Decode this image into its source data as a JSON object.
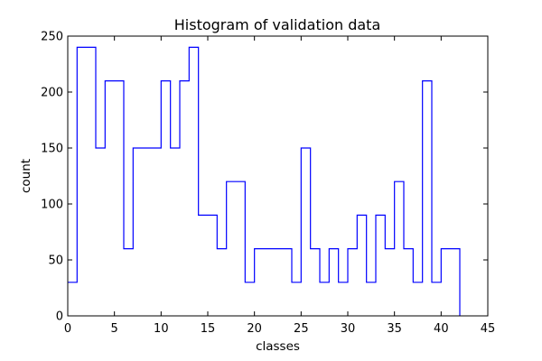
{
  "chart_data": {
    "type": "step",
    "title": "Histogram of validation data",
    "xlabel": "classes",
    "ylabel": "count",
    "xlim": [
      0,
      45
    ],
    "ylim": [
      0,
      250
    ],
    "xticks": [
      0,
      5,
      10,
      15,
      20,
      25,
      30,
      35,
      40,
      45
    ],
    "yticks": [
      0,
      50,
      100,
      150,
      200,
      250
    ],
    "grid": false,
    "series": [
      {
        "color": "#0000ff",
        "x": [
          0,
          1,
          3,
          4,
          6,
          7,
          10,
          11,
          12,
          13,
          14,
          16,
          17,
          19,
          20,
          24,
          25,
          26,
          27,
          28,
          29,
          30,
          31,
          32,
          33,
          34,
          35,
          36,
          37,
          38,
          39,
          40,
          42
        ],
        "values": [
          30,
          240,
          150,
          210,
          60,
          150,
          210,
          150,
          210,
          240,
          90,
          60,
          120,
          30,
          60,
          30,
          150,
          60,
          30,
          60,
          30,
          60,
          90,
          30,
          90,
          60,
          120,
          60,
          30,
          210,
          30,
          60,
          30
        ]
      }
    ]
  }
}
